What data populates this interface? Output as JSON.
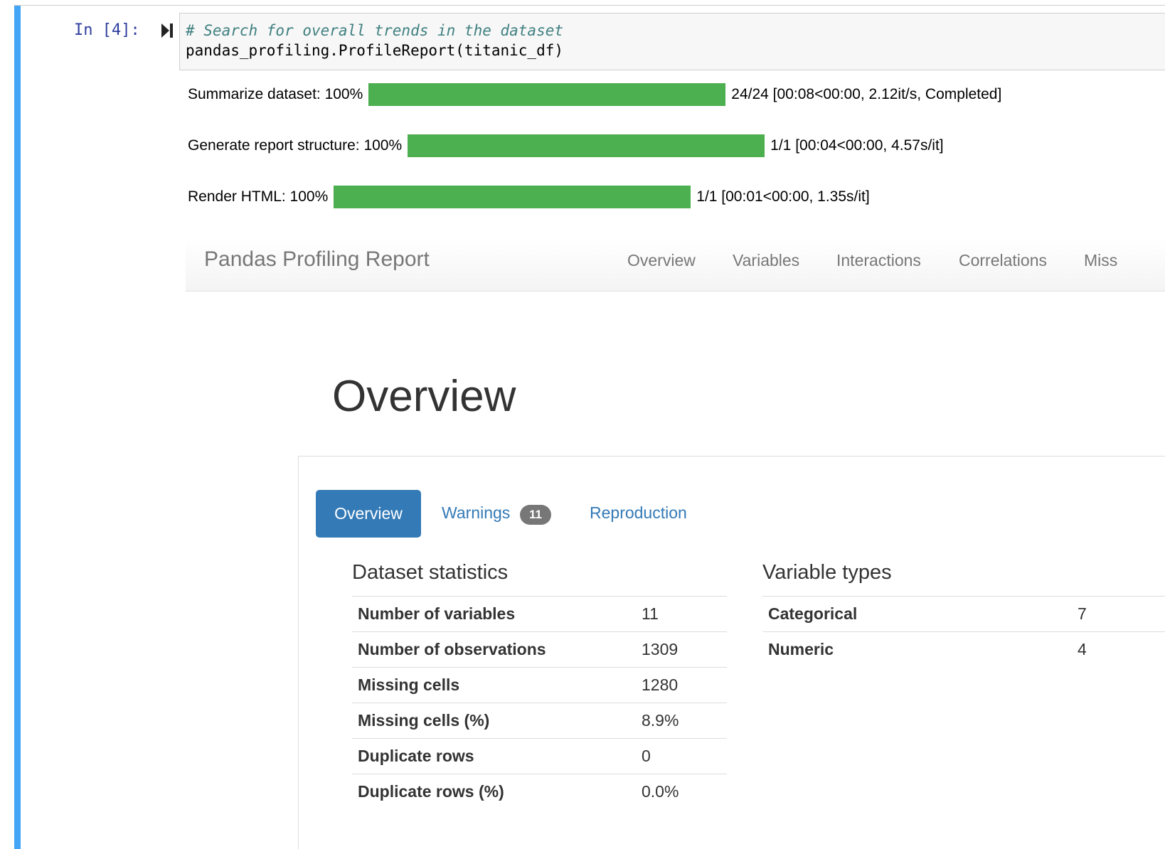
{
  "cell": {
    "prompt": "In [4]:",
    "code_comment": "# Search for overall trends in the dataset",
    "code_line": "pandas_profiling.ProfileReport(titanic_df)"
  },
  "progress": [
    {
      "label": "Summarize dataset: 100%",
      "percent": 100,
      "status": "24/24 [00:08<00:00, 2.12it/s, Completed]"
    },
    {
      "label": "Generate report structure: 100%",
      "percent": 100,
      "status": "1/1 [00:04<00:00, 4.57s/it]"
    },
    {
      "label": "Render HTML: 100%",
      "percent": 100,
      "status": "1/1 [00:01<00:00, 1.35s/it]"
    }
  ],
  "colors": {
    "progress_fill": "#4caf50",
    "cell_bar": "#42a5f5",
    "tab_active": "#337ab7"
  },
  "navbar": {
    "brand": "Pandas Profiling Report",
    "items": [
      "Overview",
      "Variables",
      "Interactions",
      "Correlations",
      "Miss"
    ]
  },
  "section": {
    "title": "Overview"
  },
  "tabs": {
    "overview": "Overview",
    "warnings": "Warnings",
    "warnings_count": "11",
    "reproduction": "Reproduction"
  },
  "dataset_statistics": {
    "title": "Dataset statistics",
    "rows": [
      {
        "label": "Number of variables",
        "value": "11"
      },
      {
        "label": "Number of observations",
        "value": "1309"
      },
      {
        "label": "Missing cells",
        "value": "1280"
      },
      {
        "label": "Missing cells (%)",
        "value": "8.9%"
      },
      {
        "label": "Duplicate rows",
        "value": "0"
      },
      {
        "label": "Duplicate rows (%)",
        "value": "0.0%"
      }
    ]
  },
  "variable_types": {
    "title": "Variable types",
    "rows": [
      {
        "label": "Categorical",
        "value": "7"
      },
      {
        "label": "Numeric",
        "value": "4"
      }
    ]
  }
}
